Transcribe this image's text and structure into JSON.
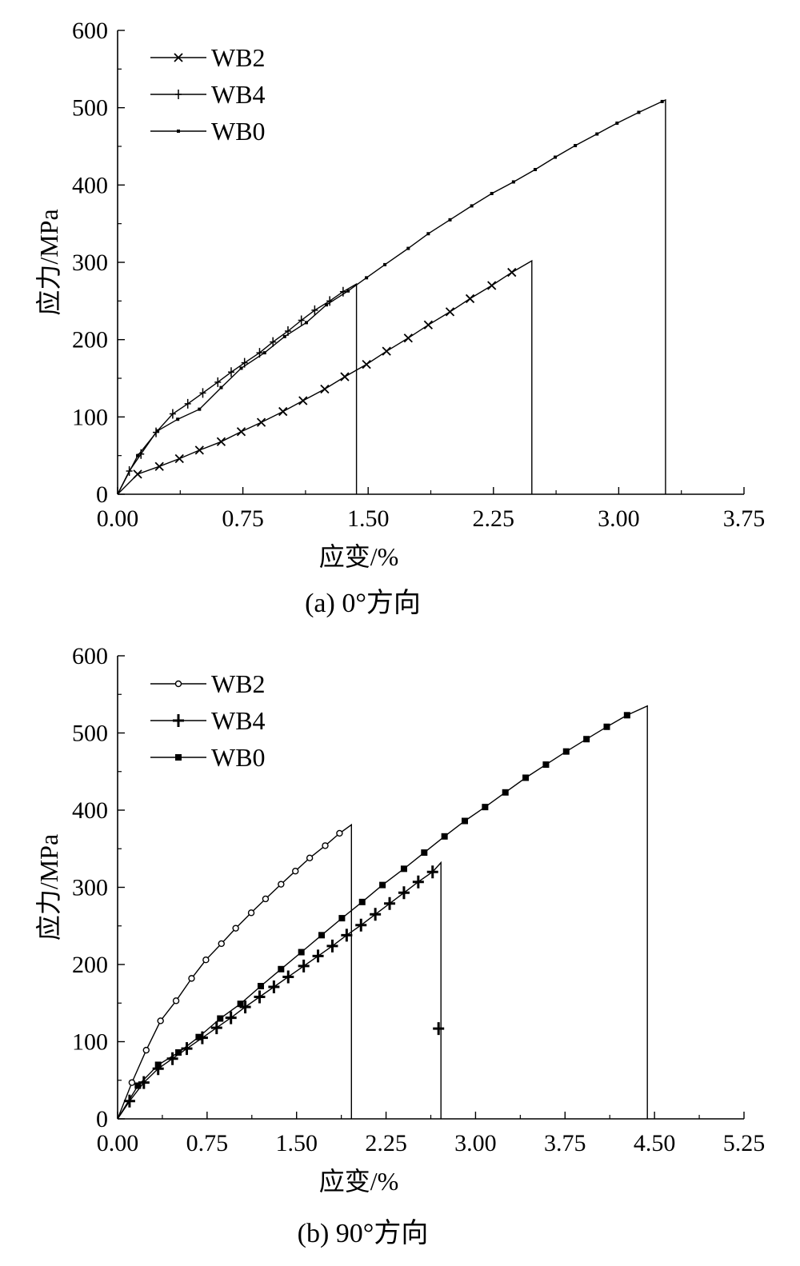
{
  "chart_data": [
    {
      "type": "line",
      "caption": "(a) 0°方向",
      "xlabel": "应变/%",
      "ylabel": "应力/MPa",
      "xlim": [
        0,
        3.75
      ],
      "ylim": [
        0,
        600
      ],
      "xticks": [
        "0.00",
        "0.75",
        "1.50",
        "2.25",
        "3.00",
        "3.75"
      ],
      "yticks": [
        "0",
        "100",
        "200",
        "300",
        "400",
        "500",
        "600"
      ],
      "legend_position": "top-left",
      "series": [
        {
          "name": "WB2",
          "marker": "x",
          "x": [
            0.0,
            0.12,
            0.25,
            0.37,
            0.49,
            0.62,
            0.74,
            0.86,
            0.99,
            1.11,
            1.24,
            1.36,
            1.49,
            1.61,
            1.74,
            1.86,
            1.99,
            2.11,
            2.24,
            2.36,
            2.48,
            2.48
          ],
          "y": [
            0,
            26,
            36,
            46,
            57,
            68,
            81,
            93,
            107,
            121,
            136,
            152,
            168,
            185,
            202,
            219,
            236,
            253,
            270,
            287,
            302,
            0
          ]
        },
        {
          "name": "WB4",
          "marker": "+",
          "x": [
            0.0,
            0.07,
            0.14,
            0.23,
            0.33,
            0.42,
            0.51,
            0.6,
            0.68,
            0.76,
            0.85,
            0.93,
            1.02,
            1.1,
            1.18,
            1.27,
            1.35,
            1.43,
            1.43
          ],
          "y": [
            0,
            30,
            52,
            80,
            104,
            117,
            131,
            145,
            158,
            170,
            183,
            197,
            211,
            225,
            238,
            250,
            262,
            272,
            0
          ]
        },
        {
          "name": "WB0",
          "marker": "dot",
          "x": [
            0.0,
            0.12,
            0.24,
            0.36,
            0.49,
            0.62,
            0.74,
            0.88,
            1.0,
            1.13,
            1.25,
            1.38,
            1.49,
            1.6,
            1.74,
            1.86,
            1.99,
            2.12,
            2.24,
            2.37,
            2.5,
            2.62,
            2.74,
            2.87,
            2.99,
            3.12,
            3.26,
            3.28,
            3.28
          ],
          "y": [
            0,
            50,
            82,
            97,
            110,
            138,
            163,
            183,
            204,
            222,
            245,
            263,
            280,
            297,
            318,
            337,
            355,
            373,
            389,
            404,
            420,
            436,
            451,
            466,
            480,
            494,
            508,
            510,
            0
          ]
        }
      ]
    },
    {
      "type": "line",
      "caption": "(b) 90°方向",
      "xlabel": "应变/%",
      "ylabel": "应力/MPa",
      "xlim": [
        0,
        5.25
      ],
      "ylim": [
        0,
        600
      ],
      "xticks": [
        "0.00",
        "0.75",
        "1.50",
        "2.25",
        "3.00",
        "3.75",
        "4.50",
        "5.25"
      ],
      "yticks": [
        "0",
        "100",
        "200",
        "300",
        "400",
        "500",
        "600"
      ],
      "legend_position": "top-left",
      "series": [
        {
          "name": "WB2",
          "marker": "open-circle",
          "x": [
            0.0,
            0.12,
            0.24,
            0.36,
            0.49,
            0.62,
            0.74,
            0.87,
            0.99,
            1.12,
            1.24,
            1.37,
            1.49,
            1.61,
            1.74,
            1.86,
            1.96,
            1.96
          ],
          "y": [
            0,
            47,
            89,
            127,
            153,
            182,
            206,
            227,
            247,
            267,
            285,
            304,
            321,
            338,
            354,
            370,
            381,
            0
          ]
        },
        {
          "name": "WB4",
          "marker": "bold-plus",
          "x": [
            0.0,
            0.1,
            0.22,
            0.34,
            0.46,
            0.58,
            0.71,
            0.83,
            0.95,
            1.07,
            1.19,
            1.31,
            1.43,
            1.56,
            1.68,
            1.8,
            1.92,
            2.04,
            2.16,
            2.28,
            2.4,
            2.52,
            2.64,
            2.71,
            2.71
          ],
          "y": [
            0,
            23,
            47,
            65,
            78,
            91,
            105,
            118,
            131,
            145,
            158,
            171,
            184,
            198,
            211,
            224,
            238,
            251,
            265,
            279,
            293,
            307,
            320,
            332,
            0
          ],
          "stray_point": {
            "x": 2.69,
            "y": 117
          }
        },
        {
          "name": "WB0",
          "marker": "filled-square",
          "x": [
            0.0,
            0.17,
            0.34,
            0.51,
            0.68,
            0.86,
            1.03,
            1.2,
            1.37,
            1.54,
            1.71,
            1.88,
            2.05,
            2.22,
            2.4,
            2.57,
            2.74,
            2.91,
            3.08,
            3.25,
            3.42,
            3.59,
            3.76,
            3.93,
            4.1,
            4.27,
            4.44,
            4.44
          ],
          "y": [
            0,
            43,
            70,
            86,
            106,
            130,
            149,
            172,
            194,
            216,
            238,
            260,
            281,
            303,
            324,
            345,
            366,
            386,
            404,
            423,
            442,
            459,
            476,
            492,
            508,
            523,
            535,
            0
          ]
        }
      ]
    }
  ]
}
